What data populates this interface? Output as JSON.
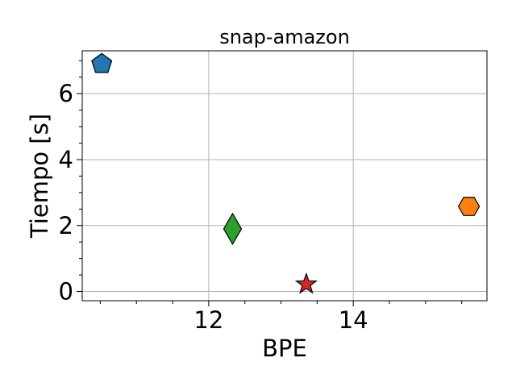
{
  "chart_data": {
    "type": "scatter",
    "title": "snap-amazon",
    "xlabel": "BPE",
    "ylabel": "Tiempo [s]",
    "xlim": [
      10.25,
      15.85
    ],
    "ylim": [
      -0.28,
      7.3
    ],
    "xticks": [
      12,
      14
    ],
    "yticks": [
      0,
      2,
      4,
      6
    ],
    "x_minor_step": 0.5,
    "y_minor_step": 0.5,
    "grid": true,
    "points": [
      {
        "x": 10.52,
        "y": 6.9,
        "marker": "pentagon",
        "color": "#1f77b4"
      },
      {
        "x": 12.33,
        "y": 1.9,
        "marker": "thin-diamond",
        "color": "#2ca02c"
      },
      {
        "x": 13.35,
        "y": 0.22,
        "marker": "star",
        "color": "#d62728"
      },
      {
        "x": 15.6,
        "y": 2.58,
        "marker": "hexagon",
        "color": "#ff7f0e"
      }
    ]
  }
}
